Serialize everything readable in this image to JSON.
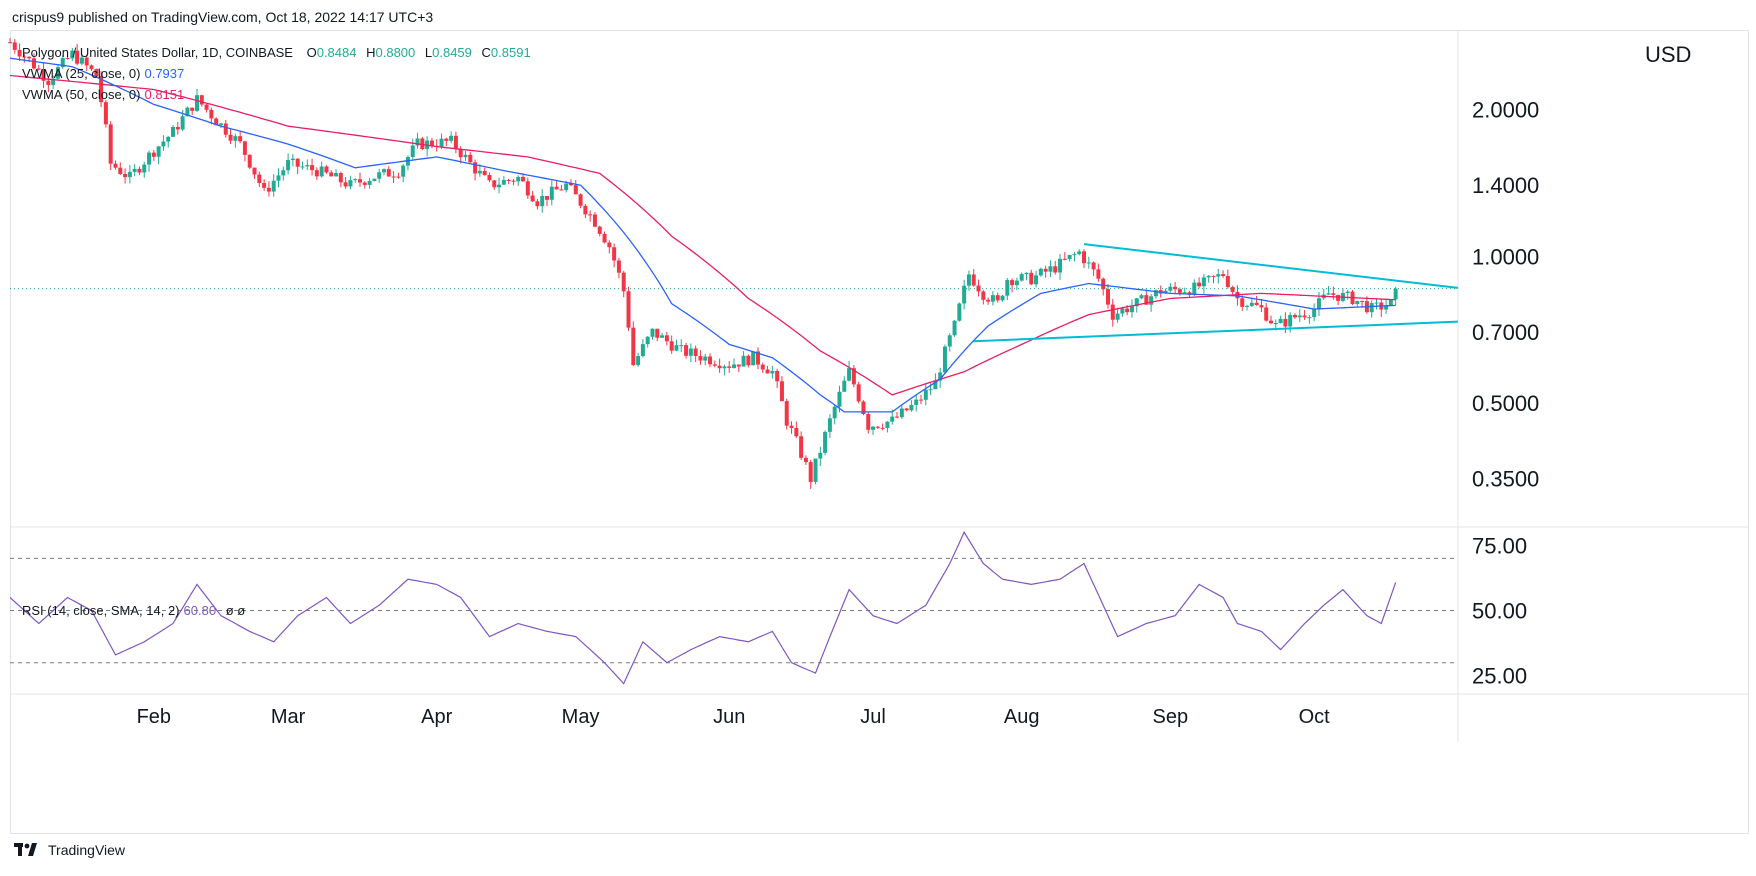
{
  "byline": "crispus9 published on TradingView.com, Oct 18, 2022 14:17 UTC+3",
  "footer": {
    "brand": "TradingView"
  },
  "colors": {
    "up": "#22ab94",
    "down": "#f23645",
    "vwma25": "#2962ff",
    "vwma50": "#e91e63",
    "trendline": "#00bcd4",
    "rsi": "#7e57c2",
    "price_line": "#22ab94",
    "grid": "#e0e3eb"
  },
  "legend": {
    "title": "Polygon / United States Dollar, 1D, COINBASE",
    "o_label": "O",
    "o_value": "0.8484",
    "h_label": "H",
    "h_value": "0.8800",
    "l_label": "L",
    "l_value": "0.8459",
    "c_label": "C",
    "c_value": "0.8591",
    "vwma25_label": "VWMA (25, close, 0)",
    "vwma25_value": "0.7937",
    "vwma50_label": "VWMA (50, close, 0)",
    "vwma50_value": "0.8151",
    "rsi_label": "RSI (14, close, SMA, 14, 2)",
    "rsi_value": "60.80",
    "rsi_extra": "ø  ø"
  },
  "chart_data": [
    {
      "type": "candlestick",
      "currency": "USD",
      "scale": "log",
      "yticks": [
        "2.0000",
        "1.4000",
        "1.0000",
        "0.7000",
        "0.5000",
        "0.3500"
      ],
      "ytick_values": [
        2.0,
        1.4,
        1.0,
        0.7,
        0.5,
        0.35
      ],
      "ylim": [
        0.28,
        2.9
      ],
      "x_start": "2022-01-02",
      "x_end": "2022-10-31",
      "months": [
        {
          "label": "Feb",
          "date": "2022-02-01"
        },
        {
          "label": "Mar",
          "date": "2022-03-01"
        },
        {
          "label": "Apr",
          "date": "2022-04-01"
        },
        {
          "label": "May",
          "date": "2022-05-01"
        },
        {
          "label": "Jun",
          "date": "2022-06-01"
        },
        {
          "label": "Jul",
          "date": "2022-07-01"
        },
        {
          "label": "Aug",
          "date": "2022-08-01"
        },
        {
          "label": "Sep",
          "date": "2022-09-01"
        },
        {
          "label": "Oct",
          "date": "2022-10-01"
        }
      ],
      "close_anchors": [
        [
          "2022-01-02",
          2.75
        ],
        [
          "2022-01-10",
          2.3
        ],
        [
          "2022-01-15",
          2.6
        ],
        [
          "2022-01-20",
          2.35
        ],
        [
          "2022-01-23",
          1.55
        ],
        [
          "2022-01-27",
          1.45
        ],
        [
          "2022-02-01",
          1.65
        ],
        [
          "2022-02-05",
          1.8
        ],
        [
          "2022-02-10",
          2.1
        ],
        [
          "2022-02-14",
          1.9
        ],
        [
          "2022-02-19",
          1.7
        ],
        [
          "2022-02-24",
          1.35
        ],
        [
          "2022-03-01",
          1.55
        ],
        [
          "2022-03-07",
          1.5
        ],
        [
          "2022-03-14",
          1.4
        ],
        [
          "2022-03-18",
          1.45
        ],
        [
          "2022-03-24",
          1.5
        ],
        [
          "2022-03-28",
          1.7
        ],
        [
          "2022-04-04",
          1.72
        ],
        [
          "2022-04-08",
          1.55
        ],
        [
          "2022-04-12",
          1.4
        ],
        [
          "2022-04-18",
          1.45
        ],
        [
          "2022-04-22",
          1.3
        ],
        [
          "2022-04-28",
          1.4
        ],
        [
          "2022-05-04",
          1.18
        ],
        [
          "2022-05-07",
          1.05
        ],
        [
          "2022-05-10",
          0.85
        ],
        [
          "2022-05-12",
          0.6
        ],
        [
          "2022-05-16",
          0.7
        ],
        [
          "2022-05-22",
          0.64
        ],
        [
          "2022-05-27",
          0.62
        ],
        [
          "2022-06-01",
          0.6
        ],
        [
          "2022-06-06",
          0.62
        ],
        [
          "2022-06-10",
          0.58
        ],
        [
          "2022-06-13",
          0.46
        ],
        [
          "2022-06-18",
          0.35
        ],
        [
          "2022-06-20",
          0.4
        ],
        [
          "2022-06-23",
          0.49
        ],
        [
          "2022-06-26",
          0.58
        ],
        [
          "2022-06-30",
          0.45
        ],
        [
          "2022-07-05",
          0.46
        ],
        [
          "2022-07-10",
          0.5
        ],
        [
          "2022-07-14",
          0.55
        ],
        [
          "2022-07-18",
          0.72
        ],
        [
          "2022-07-21",
          0.92
        ],
        [
          "2022-07-24",
          0.84
        ],
        [
          "2022-07-27",
          0.8
        ],
        [
          "2022-07-29",
          0.9
        ],
        [
          "2022-08-03",
          0.9
        ],
        [
          "2022-08-08",
          0.95
        ],
        [
          "2022-08-13",
          1.02
        ],
        [
          "2022-08-17",
          0.9
        ],
        [
          "2022-08-20",
          0.76
        ],
        [
          "2022-08-25",
          0.8
        ],
        [
          "2022-08-30",
          0.85
        ],
        [
          "2022-09-06",
          0.86
        ],
        [
          "2022-09-12",
          0.92
        ],
        [
          "2022-09-15",
          0.82
        ],
        [
          "2022-09-20",
          0.78
        ],
        [
          "2022-09-23",
          0.72
        ],
        [
          "2022-09-28",
          0.76
        ],
        [
          "2022-10-01",
          0.78
        ],
        [
          "2022-10-04",
          0.84
        ],
        [
          "2022-10-09",
          0.82
        ],
        [
          "2022-10-13",
          0.78
        ],
        [
          "2022-10-17",
          0.8
        ],
        [
          "2022-10-18",
          0.8591
        ]
      ],
      "vwma25_anchors": [
        [
          "2022-01-02",
          2.55
        ],
        [
          "2022-01-15",
          2.45
        ],
        [
          "2022-02-01",
          2.05
        ],
        [
          "2022-02-15",
          1.85
        ],
        [
          "2022-03-01",
          1.7
        ],
        [
          "2022-03-15",
          1.52
        ],
        [
          "2022-04-01",
          1.6
        ],
        [
          "2022-04-15",
          1.5
        ],
        [
          "2022-05-01",
          1.4
        ],
        [
          "2022-05-10",
          1.12
        ],
        [
          "2022-05-20",
          0.8
        ],
        [
          "2022-06-01",
          0.66
        ],
        [
          "2022-06-10",
          0.62
        ],
        [
          "2022-06-20",
          0.52
        ],
        [
          "2022-06-25",
          0.48
        ],
        [
          "2022-07-05",
          0.48
        ],
        [
          "2022-07-15",
          0.56
        ],
        [
          "2022-07-25",
          0.72
        ],
        [
          "2022-08-05",
          0.84
        ],
        [
          "2022-08-15",
          0.88
        ],
        [
          "2022-09-01",
          0.84
        ],
        [
          "2022-09-15",
          0.83
        ],
        [
          "2022-10-01",
          0.78
        ],
        [
          "2022-10-18",
          0.7937
        ]
      ],
      "vwma50_anchors": [
        [
          "2022-01-02",
          2.35
        ],
        [
          "2022-02-01",
          2.2
        ],
        [
          "2022-03-01",
          1.85
        ],
        [
          "2022-04-01",
          1.68
        ],
        [
          "2022-04-20",
          1.6
        ],
        [
          "2022-05-05",
          1.48
        ],
        [
          "2022-05-20",
          1.1
        ],
        [
          "2022-06-05",
          0.82
        ],
        [
          "2022-06-20",
          0.64
        ],
        [
          "2022-07-05",
          0.52
        ],
        [
          "2022-07-20",
          0.58
        ],
        [
          "2022-08-01",
          0.66
        ],
        [
          "2022-08-15",
          0.76
        ],
        [
          "2022-09-01",
          0.82
        ],
        [
          "2022-09-20",
          0.84
        ],
        [
          "2022-10-18",
          0.8151
        ]
      ],
      "trendlines": [
        {
          "from": [
            "2022-08-14",
            1.06
          ],
          "to": [
            "2022-10-31",
            0.862
          ]
        },
        {
          "from": [
            "2022-07-22",
            0.67
          ],
          "to": [
            "2022-10-31",
            0.735
          ]
        }
      ],
      "last_price": 0.8591
    },
    {
      "type": "line",
      "name": "RSI (14, close, SMA, 14, 2)",
      "yticks": [
        "75.00",
        "50.00",
        "25.00"
      ],
      "ytick_values": [
        75,
        50,
        25
      ],
      "ylim": [
        18,
        82
      ],
      "bands": [
        70,
        50,
        30
      ],
      "rsi_anchors": [
        [
          "2022-01-02",
          55
        ],
        [
          "2022-01-08",
          45
        ],
        [
          "2022-01-14",
          55
        ],
        [
          "2022-01-19",
          50
        ],
        [
          "2022-01-24",
          33
        ],
        [
          "2022-01-30",
          38
        ],
        [
          "2022-02-05",
          45
        ],
        [
          "2022-02-10",
          60
        ],
        [
          "2022-02-15",
          48
        ],
        [
          "2022-02-21",
          42
        ],
        [
          "2022-02-26",
          38
        ],
        [
          "2022-03-03",
          48
        ],
        [
          "2022-03-09",
          55
        ],
        [
          "2022-03-14",
          45
        ],
        [
          "2022-03-20",
          52
        ],
        [
          "2022-03-26",
          62
        ],
        [
          "2022-04-01",
          60
        ],
        [
          "2022-04-06",
          55
        ],
        [
          "2022-04-12",
          40
        ],
        [
          "2022-04-18",
          45
        ],
        [
          "2022-04-24",
          42
        ],
        [
          "2022-04-30",
          40
        ],
        [
          "2022-05-06",
          30
        ],
        [
          "2022-05-10",
          22
        ],
        [
          "2022-05-14",
          38
        ],
        [
          "2022-05-19",
          30
        ],
        [
          "2022-05-24",
          35
        ],
        [
          "2022-05-30",
          40
        ],
        [
          "2022-06-05",
          38
        ],
        [
          "2022-06-10",
          42
        ],
        [
          "2022-06-14",
          30
        ],
        [
          "2022-06-19",
          26
        ],
        [
          "2022-06-22",
          40
        ],
        [
          "2022-06-26",
          58
        ],
        [
          "2022-07-01",
          48
        ],
        [
          "2022-07-06",
          45
        ],
        [
          "2022-07-12",
          52
        ],
        [
          "2022-07-17",
          68
        ],
        [
          "2022-07-20",
          80
        ],
        [
          "2022-07-24",
          68
        ],
        [
          "2022-07-28",
          62
        ],
        [
          "2022-08-03",
          60
        ],
        [
          "2022-08-09",
          62
        ],
        [
          "2022-08-14",
          68
        ],
        [
          "2022-08-18",
          52
        ],
        [
          "2022-08-21",
          40
        ],
        [
          "2022-08-27",
          45
        ],
        [
          "2022-09-02",
          48
        ],
        [
          "2022-09-07",
          60
        ],
        [
          "2022-09-12",
          55
        ],
        [
          "2022-09-15",
          45
        ],
        [
          "2022-09-20",
          42
        ],
        [
          "2022-09-24",
          35
        ],
        [
          "2022-09-29",
          45
        ],
        [
          "2022-10-03",
          52
        ],
        [
          "2022-10-07",
          58
        ],
        [
          "2022-10-12",
          48
        ],
        [
          "2022-10-15",
          45
        ],
        [
          "2022-10-18",
          60.8
        ]
      ]
    }
  ]
}
